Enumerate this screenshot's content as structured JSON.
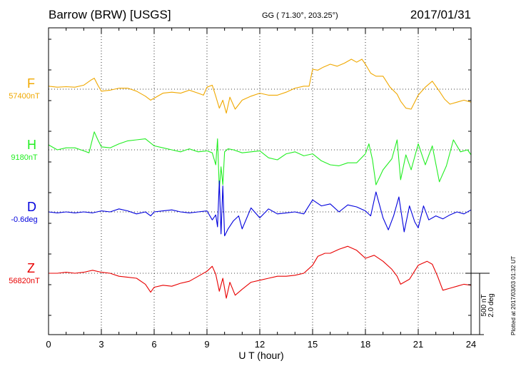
{
  "header": {
    "station": "Barrow (BRW)  [USGS]",
    "coords": "GG ( 71.30°, 203.25°)",
    "date": "2017/01/31"
  },
  "plotted_note": "Plotted at 2017/03/03 01:32 UT",
  "scale_bar": {
    "line1": "500 nT",
    "line2": "2.0 deg"
  },
  "chart_data": {
    "type": "line",
    "title": "Barrow (BRW)  [USGS]",
    "xlabel": "U T (hour)",
    "xlim": [
      0,
      24
    ],
    "xticks": [
      0,
      3,
      6,
      9,
      12,
      15,
      18,
      21,
      24
    ],
    "grid": true,
    "series": [
      {
        "name": "F",
        "baseline_label": "57400nT",
        "color": "#f0a800",
        "x": [
          0,
          0.5,
          1,
          1.5,
          2,
          2.4,
          2.6,
          2.8,
          3,
          3.5,
          4,
          4.5,
          5,
          5.5,
          5.8,
          6,
          6.5,
          7,
          7.5,
          8,
          8.5,
          8.8,
          9,
          9.3,
          9.5,
          9.7,
          9.9,
          10.1,
          10.3,
          10.6,
          11,
          11.5,
          12,
          12.5,
          13,
          13.5,
          14,
          14.5,
          14.8,
          15,
          15.3,
          15.6,
          16,
          16.4,
          16.8,
          17.2,
          17.5,
          17.8,
          18,
          18.3,
          18.6,
          19,
          19.4,
          19.8,
          20,
          20.3,
          20.6,
          21,
          21.4,
          21.8,
          22.2,
          22.5,
          22.8,
          23.2,
          23.6,
          24
        ],
        "y": [
          30,
          20,
          25,
          20,
          40,
          90,
          110,
          40,
          -20,
          -10,
          10,
          10,
          -20,
          -70,
          -110,
          -90,
          -40,
          -30,
          -40,
          -10,
          -40,
          -60,
          20,
          40,
          -70,
          -190,
          -110,
          -240,
          -80,
          -200,
          -110,
          -70,
          -40,
          -60,
          -60,
          -30,
          10,
          30,
          30,
          200,
          190,
          220,
          250,
          230,
          260,
          300,
          270,
          300,
          250,
          160,
          130,
          130,
          20,
          -50,
          -120,
          -190,
          -200,
          -60,
          20,
          80,
          -20,
          -100,
          -150,
          -130,
          -110,
          -130
        ]
      },
      {
        "name": "H",
        "baseline_label": "9180nT",
        "color": "#22ee22",
        "x": [
          0,
          0.5,
          1,
          1.5,
          2,
          2.3,
          2.6,
          2.8,
          3,
          3.5,
          4,
          4.5,
          5,
          5.5,
          6,
          6.5,
          7,
          7.5,
          8,
          8.5,
          9,
          9.3,
          9.5,
          9.6,
          9.7,
          9.8,
          9.9,
          10,
          10.2,
          10.5,
          11,
          11.5,
          12,
          12.5,
          13,
          13.5,
          14,
          14.5,
          15,
          15.5,
          16,
          16.5,
          17,
          17.5,
          18,
          18.2,
          18.4,
          18.6,
          19,
          19.5,
          19.8,
          20,
          20.3,
          20.6,
          21,
          21.4,
          21.8,
          22.2,
          22.6,
          23,
          23.4,
          23.8,
          24
        ],
        "y": [
          50,
          0,
          20,
          20,
          -10,
          -30,
          180,
          100,
          30,
          20,
          60,
          90,
          100,
          110,
          40,
          20,
          0,
          -20,
          10,
          -20,
          -10,
          -30,
          -150,
          110,
          -400,
          -170,
          -350,
          -20,
          10,
          0,
          -30,
          -20,
          -10,
          -80,
          -100,
          -40,
          -20,
          -60,
          -40,
          -110,
          -150,
          -160,
          -130,
          -130,
          -40,
          60,
          -100,
          -350,
          -200,
          -90,
          100,
          -300,
          -50,
          -200,
          60,
          -150,
          40,
          -320,
          -160,
          100,
          -20,
          0,
          -50
        ]
      },
      {
        "name": "D",
        "baseline_label": "-0.6deg",
        "color": "#0000dd",
        "x": [
          0,
          0.5,
          1,
          1.5,
          2,
          2.5,
          3,
          3.5,
          4,
          4.5,
          5,
          5.5,
          5.8,
          6,
          6.5,
          7,
          7.5,
          8,
          8.5,
          9,
          9.3,
          9.5,
          9.6,
          9.7,
          9.8,
          9.9,
          10,
          10.2,
          10.5,
          10.8,
          11,
          11.5,
          12,
          12.5,
          13,
          13.5,
          14,
          14.5,
          15,
          15.5,
          16,
          16.5,
          17,
          17.5,
          18,
          18.3,
          18.6,
          19,
          19.3,
          19.6,
          19.9,
          20.2,
          20.5,
          20.8,
          21,
          21.3,
          21.6,
          22,
          22.4,
          22.8,
          23.2,
          23.6,
          24
        ],
        "y": [
          0,
          -10,
          0,
          -10,
          0,
          -10,
          10,
          0,
          30,
          10,
          -20,
          0,
          -40,
          0,
          10,
          20,
          0,
          -10,
          0,
          10,
          -80,
          -30,
          -150,
          310,
          -220,
          260,
          -240,
          -170,
          -90,
          -40,
          -170,
          40,
          -60,
          30,
          -20,
          -10,
          0,
          -20,
          120,
          60,
          80,
          0,
          70,
          50,
          10,
          -40,
          200,
          -60,
          -180,
          -40,
          150,
          -200,
          60,
          -100,
          -160,
          60,
          -80,
          -40,
          -70,
          -30,
          0,
          -20,
          20
        ]
      },
      {
        "name": "Z",
        "baseline_label": "56820nT",
        "color": "#e80000",
        "x": [
          0,
          0.5,
          1,
          1.5,
          2,
          2.5,
          3,
          3.5,
          4,
          4.5,
          5,
          5.5,
          5.8,
          6,
          6.5,
          7,
          7.5,
          8,
          8.5,
          9,
          9.3,
          9.5,
          9.7,
          9.9,
          10.1,
          10.3,
          10.6,
          11,
          11.5,
          12,
          12.5,
          13,
          13.5,
          14,
          14.5,
          15,
          15.3,
          15.7,
          16,
          16.5,
          17,
          17.5,
          18,
          18.5,
          19,
          19.5,
          19.8,
          20,
          20.5,
          21,
          21.5,
          21.8,
          22.1,
          22.4,
          22.8,
          23.2,
          23.6,
          24
        ],
        "y": [
          0,
          0,
          10,
          0,
          10,
          30,
          10,
          0,
          -30,
          -40,
          -50,
          -110,
          -190,
          -140,
          -120,
          -130,
          -100,
          -80,
          -30,
          20,
          70,
          -10,
          -180,
          -50,
          -250,
          -90,
          -220,
          -160,
          -90,
          -70,
          -50,
          -30,
          -30,
          -20,
          0,
          80,
          170,
          200,
          200,
          240,
          270,
          230,
          150,
          180,
          120,
          40,
          -30,
          -110,
          -60,
          80,
          120,
          90,
          -30,
          -170,
          -150,
          -130,
          -110,
          -120
        ]
      }
    ]
  }
}
